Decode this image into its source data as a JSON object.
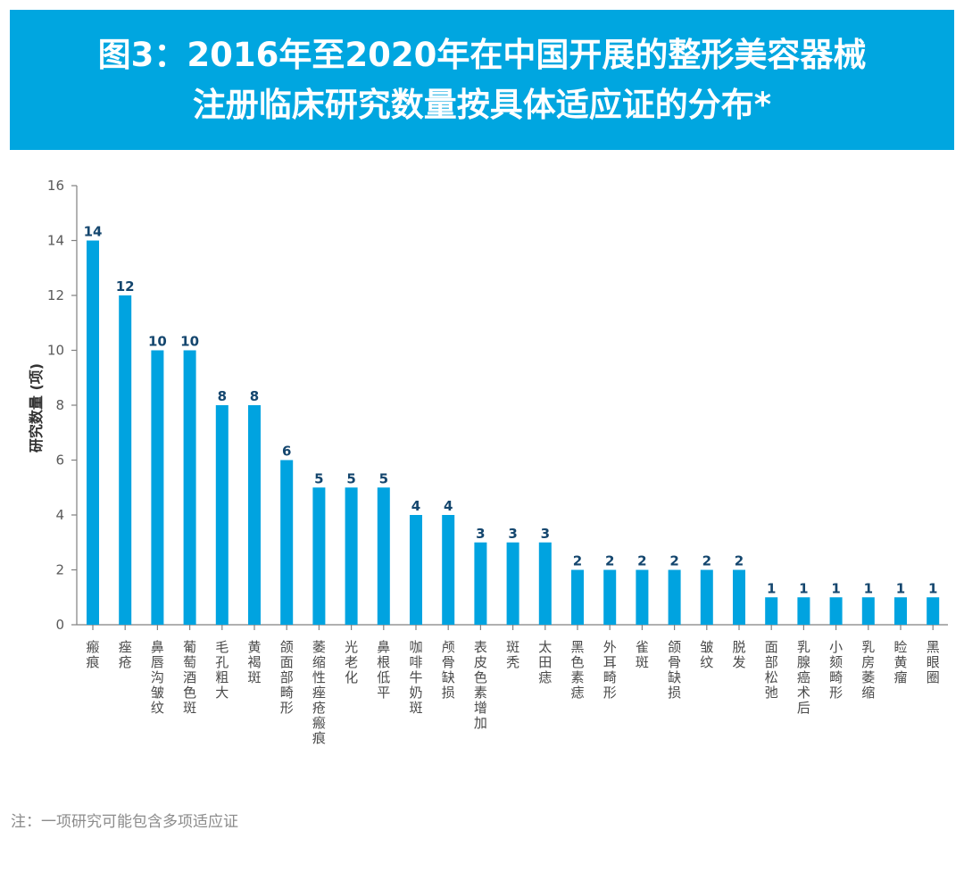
{
  "title": {
    "line1": "图3：2016年至2020年在中国开展的整形美容器械",
    "line2": "注册临床研究数量按具体适应证的分布*"
  },
  "note": "注：一项研究可能包含多项适应证",
  "colors": {
    "banner": "#00a6e0",
    "bar": "#00a3e0",
    "value_label": "#14466e",
    "axis": "#808080"
  },
  "chart_data": {
    "type": "bar",
    "title": "图3：2016年至2020年在中国开展的整形美容器械注册临床研究数量按具体适应证的分布*",
    "xlabel": "",
    "ylabel": "研究数量 (项)",
    "ylim": [
      0,
      16
    ],
    "yticks": [
      0,
      2,
      4,
      6,
      8,
      10,
      12,
      14,
      16
    ],
    "grid": false,
    "legend": "none",
    "categories": [
      "瘢痕",
      "痤疮",
      "鼻唇沟皱纹",
      "葡萄酒色斑",
      "毛孔粗大",
      "黄褐斑",
      "颌面部畸形",
      "萎缩性痤疮瘢痕",
      "光老化",
      "鼻根低平",
      "咖啡牛奶斑",
      "颅骨缺损",
      "表皮色素增加",
      "斑秃",
      "太田痣",
      "黑色素痣",
      "外耳畸形",
      "雀斑",
      "颌骨缺损",
      "皱纹",
      "脱发",
      "面部松弛",
      "乳腺癌术后",
      "小颏畸形",
      "乳房萎缩",
      "睑黄瘤",
      "黑眼圈"
    ],
    "values": [
      14,
      12,
      10,
      10,
      8,
      8,
      6,
      5,
      5,
      5,
      4,
      4,
      3,
      3,
      3,
      2,
      2,
      2,
      2,
      2,
      2,
      1,
      1,
      1,
      1,
      1,
      1
    ]
  }
}
